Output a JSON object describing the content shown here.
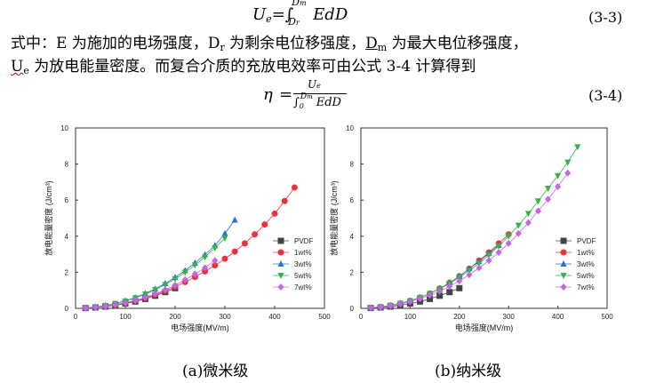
{
  "equations": {
    "eq3": {
      "text": "U_e = ∫_{D_r}^{D_m} E dD",
      "number": "(3-3)"
    },
    "eq4": {
      "text": "η = U_e / ∫_0^{D_m} E dD",
      "number": "(3-4)"
    }
  },
  "paragraph": {
    "line1_prefix": "式中：E 为施加的电场强度，",
    "dr_label": "D",
    "dr_sub": "r",
    "line1_mid": " 为剩余电位移强度，",
    "dm_label": "D",
    "dm_sub": "m",
    "line1_suffix": " 为最大电位移强度，",
    "ue_label": "U",
    "ue_sub": "e",
    "line2": " 为放电能量密度。而复合介质的充放电效率可由公式 3-4 计算得到"
  },
  "captions": {
    "a": "(a)微米级",
    "b": "(b)纳米级"
  },
  "chart_data": [
    {
      "type": "scatter",
      "title": "",
      "xlabel": "电场强度(MV/m)",
      "ylabel": "放电能量密度 (J/cm³)",
      "xlim": [
        0,
        500
      ],
      "ylim": [
        0,
        10
      ],
      "xticks": [
        0,
        100,
        200,
        300,
        400,
        500
      ],
      "yticks": [
        0,
        2,
        4,
        6,
        8,
        10
      ],
      "legend_position": "bottom-right",
      "series": [
        {
          "name": "PVDF",
          "color": "#444444",
          "marker": "square",
          "x": [
            20,
            40,
            60,
            80,
            100,
            120,
            140,
            160,
            180,
            200
          ],
          "y": [
            0.02,
            0.05,
            0.1,
            0.17,
            0.27,
            0.38,
            0.52,
            0.7,
            0.9,
            1.12
          ]
        },
        {
          "name": "1wt%",
          "color": "#e8333c",
          "marker": "circle",
          "x": [
            20,
            40,
            60,
            80,
            100,
            120,
            140,
            160,
            180,
            200,
            220,
            240,
            260,
            280,
            300,
            320,
            340,
            360,
            380,
            400,
            420,
            440
          ],
          "y": [
            0.02,
            0.06,
            0.12,
            0.2,
            0.3,
            0.43,
            0.58,
            0.76,
            0.97,
            1.2,
            1.46,
            1.74,
            2.05,
            2.38,
            2.75,
            3.15,
            3.6,
            4.1,
            4.65,
            5.25,
            5.95,
            6.7
          ]
        },
        {
          "name": "3wt%",
          "color": "#2a6fd6",
          "marker": "triangle-up",
          "x": [
            20,
            40,
            60,
            80,
            100,
            120,
            140,
            160,
            180,
            200,
            220,
            240,
            260,
            280,
            300,
            320
          ],
          "y": [
            0.03,
            0.08,
            0.16,
            0.27,
            0.42,
            0.6,
            0.82,
            1.08,
            1.38,
            1.72,
            2.1,
            2.52,
            2.98,
            3.48,
            4.15,
            4.9
          ]
        },
        {
          "name": "5wt%",
          "color": "#33b24a",
          "marker": "triangle-down",
          "x": [
            20,
            40,
            60,
            80,
            100,
            120,
            140,
            160,
            180,
            200,
            220,
            240,
            260,
            280,
            300
          ],
          "y": [
            0.03,
            0.08,
            0.15,
            0.26,
            0.4,
            0.57,
            0.78,
            1.03,
            1.31,
            1.63,
            2.0,
            2.4,
            2.85,
            3.35,
            3.9
          ]
        },
        {
          "name": "7wt%",
          "color": "#c366e6",
          "marker": "diamond",
          "x": [
            20,
            40,
            60,
            80,
            100,
            120,
            140,
            160,
            180,
            200,
            220,
            240,
            260,
            280
          ],
          "y": [
            0.02,
            0.06,
            0.12,
            0.2,
            0.31,
            0.44,
            0.6,
            0.8,
            1.03,
            1.29,
            1.58,
            1.9,
            2.25,
            2.65
          ]
        }
      ]
    },
    {
      "type": "scatter",
      "title": "",
      "xlabel": "电场强度(MV/m)",
      "ylabel": "放电能量密度 (J/cm³)",
      "xlim": [
        0,
        500
      ],
      "ylim": [
        0,
        10
      ],
      "xticks": [
        0,
        100,
        200,
        300,
        400,
        500
      ],
      "yticks": [
        0,
        2,
        4,
        6,
        8,
        10
      ],
      "legend_position": "bottom-right",
      "series": [
        {
          "name": "PVDF",
          "color": "#444444",
          "marker": "square",
          "x": [
            20,
            40,
            60,
            80,
            100,
            120,
            140,
            160,
            180,
            200
          ],
          "y": [
            0.02,
            0.05,
            0.1,
            0.17,
            0.27,
            0.38,
            0.52,
            0.7,
            0.9,
            1.12
          ]
        },
        {
          "name": "1wt%",
          "color": "#e8333c",
          "marker": "circle",
          "x": [
            20,
            40,
            60,
            80,
            100,
            120,
            140,
            160,
            180,
            200,
            220,
            240,
            260,
            280,
            300
          ],
          "y": [
            0.03,
            0.08,
            0.16,
            0.27,
            0.42,
            0.6,
            0.82,
            1.1,
            1.42,
            1.78,
            2.2,
            2.65,
            3.1,
            3.6,
            4.1
          ]
        },
        {
          "name": "3wt%",
          "color": "#2a6fd6",
          "marker": "triangle-up",
          "x": [
            20,
            40,
            60,
            80,
            100,
            120,
            140,
            160,
            180,
            200,
            220,
            240,
            260,
            280
          ],
          "y": [
            0.03,
            0.08,
            0.16,
            0.27,
            0.42,
            0.6,
            0.82,
            1.1,
            1.42,
            1.78,
            2.2,
            2.6,
            3.05,
            3.5
          ]
        },
        {
          "name": "5wt%",
          "color": "#33b24a",
          "marker": "triangle-down",
          "x": [
            20,
            40,
            60,
            80,
            100,
            120,
            140,
            160,
            180,
            200,
            220,
            240,
            260,
            280,
            300,
            320,
            340,
            360,
            380,
            400,
            420,
            440
          ],
          "y": [
            0.03,
            0.08,
            0.16,
            0.27,
            0.42,
            0.6,
            0.82,
            1.08,
            1.38,
            1.72,
            2.1,
            2.5,
            2.95,
            3.45,
            4.0,
            4.6,
            5.25,
            5.95,
            6.65,
            7.35,
            8.1,
            8.95
          ]
        },
        {
          "name": "7wt%",
          "color": "#c366e6",
          "marker": "diamond",
          "x": [
            20,
            40,
            60,
            80,
            100,
            120,
            140,
            160,
            180,
            200,
            220,
            240,
            260,
            280,
            300,
            320,
            340,
            360,
            380,
            400,
            420
          ],
          "y": [
            0.03,
            0.07,
            0.14,
            0.24,
            0.37,
            0.53,
            0.72,
            0.95,
            1.22,
            1.52,
            1.86,
            2.24,
            2.65,
            3.1,
            3.6,
            4.15,
            4.75,
            5.4,
            6.05,
            6.75,
            7.5
          ]
        }
      ]
    }
  ]
}
